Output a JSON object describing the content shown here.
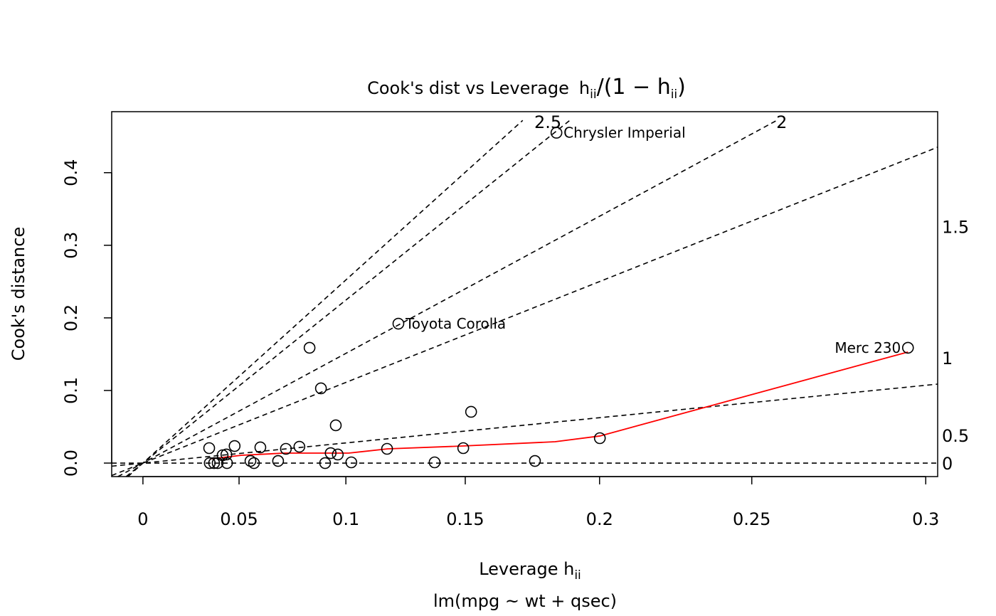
{
  "chart_data": {
    "type": "scatter",
    "title": "Cook's dist vs Leverage  h_ii/(1 - h_ii)",
    "title_parts": {
      "main": "Cook's dist vs Leverage",
      "num": "h",
      "sub": "ii",
      "open": "(1 − h",
      "close": ")"
    },
    "xlabel": "Leverage  h_ii",
    "xlabel_parts": {
      "main": "Leverage  h",
      "sub": "ii"
    },
    "ylabel": "Cook's distance",
    "subtitle": "lm(mpg ~ wt + qsec)",
    "x_scale": "h/(1-h)",
    "xlim_h_over_1_minus_h": [
      -0.0171,
      0.4351
    ],
    "ylim": [
      -0.0186,
      0.484
    ],
    "x_ticks": [
      0,
      0.05,
      0.1,
      0.15,
      0.2,
      0.25,
      0.3
    ],
    "x_tick_labels": [
      "0",
      "0.05",
      "0.1",
      "0.15",
      "0.2",
      "0.25",
      "0.3"
    ],
    "y_ticks": [
      0,
      0.1,
      0.2,
      0.3,
      0.4
    ],
    "y_tick_labels": [
      "0.0",
      "0.1",
      "0.2",
      "0.3",
      "0.4"
    ],
    "grid": false,
    "points": [
      {
        "h": 0.035,
        "cook": 0.0206
      },
      {
        "h": 0.0353,
        "cook": 0.0
      },
      {
        "h": 0.0375,
        "cook": 0.0
      },
      {
        "h": 0.0393,
        "cook": 0.0
      },
      {
        "h": 0.0418,
        "cook": 0.0108
      },
      {
        "h": 0.0437,
        "cook": 0.0118
      },
      {
        "h": 0.044,
        "cook": 0.0
      },
      {
        "h": 0.0478,
        "cook": 0.0235
      },
      {
        "h": 0.0556,
        "cook": 0.0029
      },
      {
        "h": 0.0573,
        "cook": 0.0
      },
      {
        "h": 0.0604,
        "cook": 0.0216
      },
      {
        "h": 0.0689,
        "cook": 0.0029
      },
      {
        "h": 0.0726,
        "cook": 0.0196
      },
      {
        "h": 0.0789,
        "cook": 0.0225
      },
      {
        "h": 0.0836,
        "cook": 0.1588
      },
      {
        "h": 0.0888,
        "cook": 0.1029
      },
      {
        "h": 0.0907,
        "cook": 0.0
      },
      {
        "h": 0.0932,
        "cook": 0.0137
      },
      {
        "h": 0.0955,
        "cook": 0.052
      },
      {
        "h": 0.0964,
        "cook": 0.0118
      },
      {
        "h": 0.1024,
        "cook": 0.001
      },
      {
        "h": 0.1179,
        "cook": 0.0196
      },
      {
        "h": 0.1227,
        "cook": 0.192,
        "label": "Toyota Corolla"
      },
      {
        "h": 0.1377,
        "cook": 0.001
      },
      {
        "h": 0.1492,
        "cook": 0.0206
      },
      {
        "h": 0.1523,
        "cook": 0.0706
      },
      {
        "h": 0.1767,
        "cook": 0.0029
      },
      {
        "h": 0.1846,
        "cook": 0.455,
        "label": "Chrysler Imperial"
      },
      {
        "h": 0.2001,
        "cook": 0.0343
      },
      {
        "h": 0.2952,
        "cook": 0.1588,
        "label": "Merc 230",
        "label_side": "left"
      }
    ],
    "smooth_line": {
      "color": "#ff0000",
      "points": [
        {
          "h": 0.036,
          "cook": 0.0059
        },
        {
          "h": 0.0514,
          "cook": 0.0108
        },
        {
          "h": 0.0719,
          "cook": 0.0137
        },
        {
          "h": 0.1012,
          "cook": 0.0137
        },
        {
          "h": 0.1182,
          "cook": 0.0196
        },
        {
          "h": 0.1489,
          "cook": 0.0235
        },
        {
          "h": 0.1841,
          "cook": 0.0294
        },
        {
          "h": 0.2001,
          "cook": 0.0373
        },
        {
          "h": 0.2952,
          "cook": 0.153
        }
      ]
    },
    "contours": [
      {
        "slope": 0.0,
        "end": "right"
      },
      {
        "slope": 0.25,
        "end": "right"
      },
      {
        "slope": 1.0,
        "end": "right"
      },
      {
        "slope": 1.36,
        "end": "top"
      },
      {
        "slope": 2.02,
        "end": "top"
      },
      {
        "slope": 2.27,
        "end": "top"
      }
    ],
    "contour_labels": [
      {
        "text": "0",
        "side": "right",
        "cook": 0.0
      },
      {
        "text": "0.5",
        "side": "right",
        "cook": 0.038
      },
      {
        "text": "1",
        "side": "right",
        "cook": 0.145
      },
      {
        "text": "1.5",
        "side": "right",
        "cook": 0.326
      },
      {
        "text": "2",
        "side": "top",
        "h_over_1_minus_h": 0.3497
      },
      {
        "text": "2.5",
        "side": "top",
        "h_over_1_minus_h": 0.2217
      }
    ]
  }
}
